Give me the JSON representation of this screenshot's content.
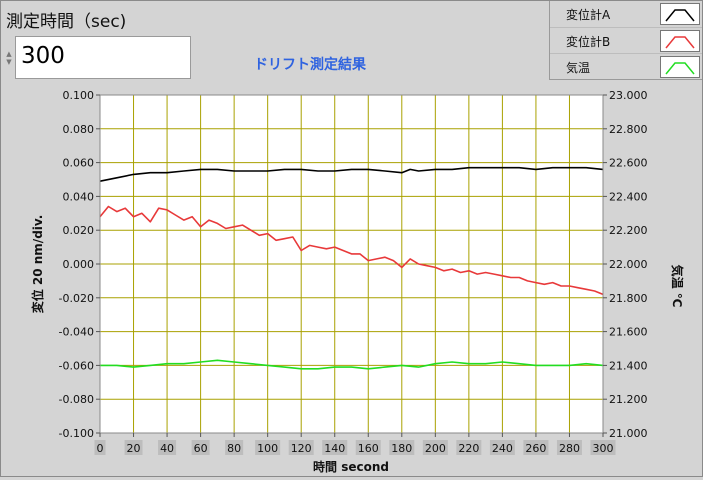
{
  "control": {
    "label": "測定時間（sec)",
    "value": "300"
  },
  "graph_title": "ドリフト測定結果",
  "legend": [
    {
      "label": "変位計A",
      "color": "#000000",
      "icon": "plot-line-icon"
    },
    {
      "label": "変位計B",
      "color": "#e8393a",
      "icon": "plot-line-icon"
    },
    {
      "label": "気温",
      "color": "#22dd22",
      "icon": "plot-line-icon"
    }
  ],
  "chart_data": {
    "type": "line",
    "xlabel": "時間 second",
    "ylabel_left": "変位 20 nm/div.",
    "ylabel_right": "気温 ℃",
    "xlim": [
      0,
      300
    ],
    "ylim_left": [
      -0.1,
      0.1
    ],
    "ylim_right": [
      21.0,
      23.0
    ],
    "x_ticks": [
      "0",
      "20",
      "40",
      "60",
      "80",
      "100",
      "120",
      "140",
      "160",
      "180",
      "200",
      "220",
      "240",
      "260",
      "280",
      "300"
    ],
    "y_left_ticks": [
      "0.100",
      "0.080",
      "0.060",
      "0.040",
      "0.020",
      "0.000",
      "-0.020",
      "-0.040",
      "-0.060",
      "-0.080",
      "-0.100"
    ],
    "y_right_ticks": [
      "23.000",
      "22.800",
      "22.600",
      "22.400",
      "22.200",
      "22.000",
      "21.800",
      "21.600",
      "21.400",
      "21.200",
      "21.000"
    ],
    "grid": true,
    "colors": {
      "plot_bg": "#ffffff",
      "grid": "#a9a100"
    },
    "series": [
      {
        "name": "変位計A",
        "axis": "left",
        "color": "#000000",
        "x": [
          0,
          10,
          20,
          30,
          40,
          50,
          60,
          70,
          80,
          90,
          100,
          110,
          120,
          130,
          140,
          150,
          160,
          170,
          180,
          185,
          190,
          200,
          210,
          220,
          230,
          240,
          250,
          260,
          270,
          280,
          290,
          300
        ],
        "y": [
          0.049,
          0.051,
          0.053,
          0.054,
          0.054,
          0.055,
          0.056,
          0.056,
          0.055,
          0.055,
          0.055,
          0.056,
          0.056,
          0.055,
          0.055,
          0.056,
          0.056,
          0.055,
          0.054,
          0.056,
          0.055,
          0.056,
          0.056,
          0.057,
          0.057,
          0.057,
          0.057,
          0.056,
          0.057,
          0.057,
          0.057,
          0.056
        ]
      },
      {
        "name": "変位計B",
        "axis": "left",
        "color": "#e8393a",
        "x": [
          0,
          5,
          10,
          15,
          20,
          25,
          30,
          35,
          40,
          45,
          50,
          55,
          60,
          65,
          70,
          75,
          80,
          85,
          90,
          95,
          100,
          105,
          110,
          115,
          120,
          125,
          130,
          135,
          140,
          145,
          150,
          155,
          160,
          165,
          170,
          175,
          180,
          185,
          190,
          195,
          200,
          205,
          210,
          215,
          220,
          225,
          230,
          235,
          240,
          245,
          250,
          255,
          260,
          265,
          270,
          275,
          280,
          285,
          290,
          295,
          300
        ],
        "y": [
          0.028,
          0.034,
          0.031,
          0.033,
          0.028,
          0.03,
          0.025,
          0.033,
          0.032,
          0.029,
          0.026,
          0.028,
          0.022,
          0.026,
          0.024,
          0.021,
          0.022,
          0.023,
          0.02,
          0.017,
          0.018,
          0.014,
          0.015,
          0.016,
          0.008,
          0.011,
          0.01,
          0.009,
          0.01,
          0.008,
          0.006,
          0.006,
          0.002,
          0.003,
          0.004,
          0.002,
          -0.002,
          0.003,
          0.0,
          -0.001,
          -0.002,
          -0.004,
          -0.003,
          -0.005,
          -0.004,
          -0.006,
          -0.005,
          -0.006,
          -0.007,
          -0.008,
          -0.008,
          -0.01,
          -0.011,
          -0.012,
          -0.011,
          -0.013,
          -0.013,
          -0.014,
          -0.015,
          -0.016,
          -0.018
        ]
      },
      {
        "name": "気温",
        "axis": "right",
        "color": "#22dd22",
        "x": [
          0,
          10,
          20,
          30,
          40,
          50,
          60,
          70,
          80,
          90,
          100,
          110,
          120,
          130,
          140,
          150,
          160,
          170,
          180,
          190,
          200,
          210,
          220,
          230,
          240,
          250,
          260,
          270,
          280,
          290,
          300
        ],
        "y": [
          21.4,
          21.4,
          21.39,
          21.4,
          21.41,
          21.41,
          21.42,
          21.43,
          21.42,
          21.41,
          21.4,
          21.39,
          21.38,
          21.38,
          21.39,
          21.39,
          21.38,
          21.39,
          21.4,
          21.39,
          21.41,
          21.42,
          21.41,
          21.41,
          21.42,
          21.41,
          21.4,
          21.4,
          21.4,
          21.41,
          21.4
        ]
      }
    ]
  }
}
